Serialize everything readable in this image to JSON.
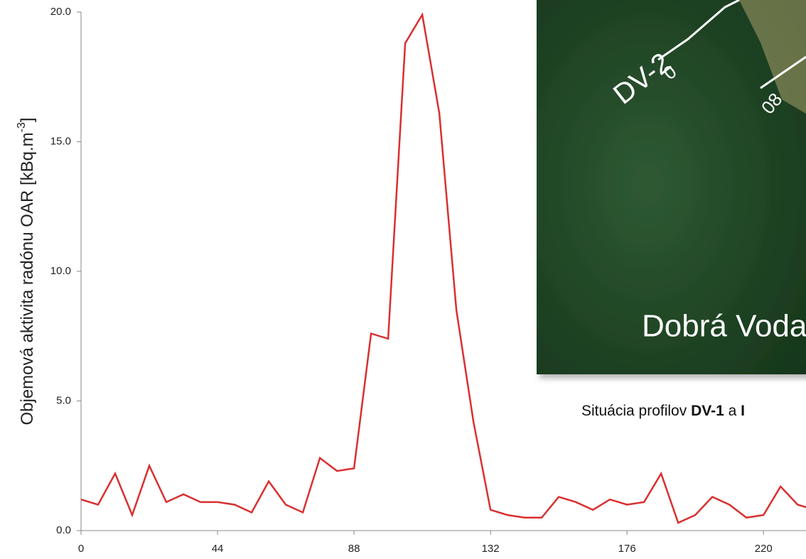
{
  "chart_data": {
    "type": "line",
    "y_label": {
      "text": "Objemová aktivita radónu OAR [kBq.m",
      "superscript": "-3",
      "suffix": "]"
    },
    "x": [
      0,
      5.5,
      11,
      16.5,
      22,
      27.5,
      33,
      38.5,
      44,
      49.5,
      55,
      60.5,
      66,
      71.5,
      77,
      82.5,
      88,
      93.5,
      99,
      104.5,
      110,
      115.5,
      121,
      126.5,
      132,
      137.5,
      143,
      148.5,
      154,
      159.5,
      165,
      170.5,
      176,
      181.5,
      187,
      192.5,
      198,
      203.5,
      209,
      214.5,
      220,
      225.5,
      231,
      236.5
    ],
    "series": [
      {
        "color": "#d93030",
        "values": [
          1.2,
          1.0,
          2.2,
          0.6,
          2.5,
          1.1,
          1.4,
          1.1,
          1.1,
          1.0,
          0.7,
          1.9,
          1.0,
          0.7,
          2.8,
          2.3,
          2.4,
          7.6,
          7.4,
          18.8,
          19.9,
          16.1,
          8.5,
          4.2,
          0.8,
          0.6,
          0.5,
          0.5,
          1.3,
          1.1,
          0.8,
          1.2,
          1.0,
          1.1,
          2.2,
          0.3,
          0.6,
          1.3,
          1.0,
          0.5,
          0.6,
          1.7,
          1.0,
          0.8
        ]
      }
    ],
    "xlim": [
      0,
      233.7
    ],
    "ylim": [
      0,
      20
    ],
    "xticks": [
      0,
      44,
      88,
      132,
      176,
      220
    ],
    "yticks": [
      {
        "value": 0,
        "label": "0.0"
      },
      {
        "value": 5,
        "label": "5.0"
      },
      {
        "value": 10,
        "label": "10.0"
      },
      {
        "value": 15,
        "label": "15.0"
      },
      {
        "value": 20,
        "label": "20.0"
      }
    ],
    "inset": {
      "profile_label": "DV-2",
      "start_marker": "0",
      "marker_2": "08",
      "place": "Dobrá Voda",
      "caption": {
        "text": "Situácia profilov ",
        "bold_1": "DV-1",
        "middle": " a ",
        "bold_2": "I"
      }
    }
  }
}
